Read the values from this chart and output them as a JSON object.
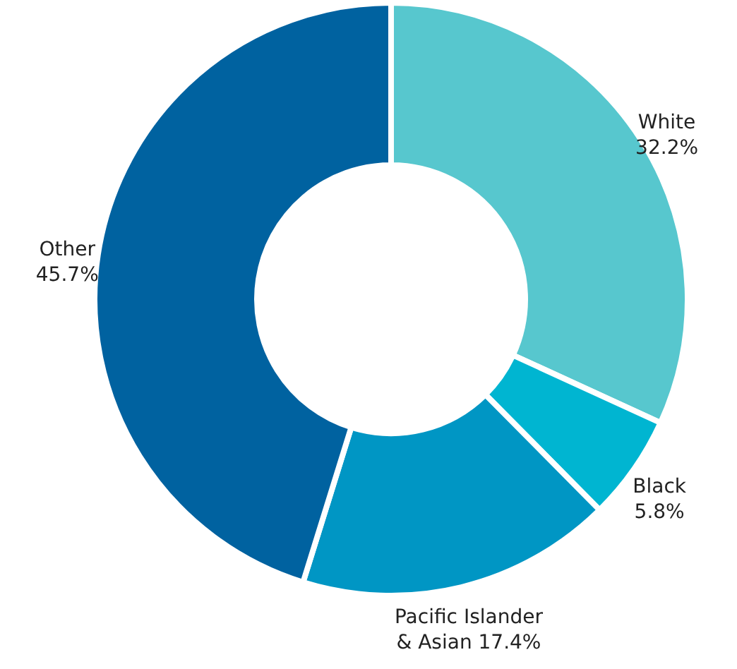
{
  "chart_data": {
    "type": "donut",
    "categories": [
      "White",
      "Black",
      "Pacific Islander & Asian",
      "Other"
    ],
    "values": [
      32.2,
      5.8,
      17.4,
      45.7
    ],
    "colors": [
      "#57c7ce",
      "#00b5d1",
      "#0096c4",
      "#0062a0"
    ],
    "value_labels": [
      "32.2%",
      "5.8%",
      "17.4%",
      "45.7%"
    ]
  }
}
